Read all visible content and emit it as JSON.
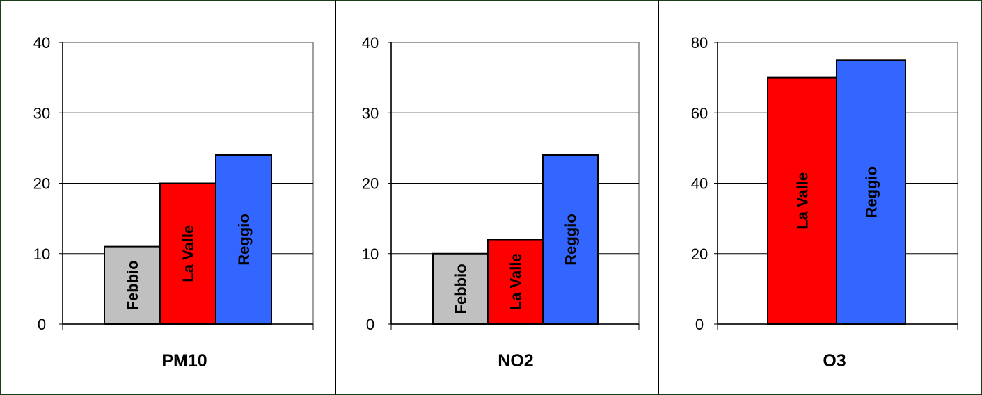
{
  "chart_data": [
    {
      "type": "bar",
      "title": "PM10",
      "categories": [
        "Febbio",
        "La Valle",
        "Reggio"
      ],
      "values": [
        11,
        20,
        24
      ],
      "colors": [
        "#c0c0c0",
        "#ff0000",
        "#3366ff"
      ],
      "ylim": [
        0,
        40
      ],
      "yticks": [
        "0",
        "10",
        "20",
        "30",
        "40"
      ],
      "grid": true,
      "legend": "none"
    },
    {
      "type": "bar",
      "title": "NO2",
      "categories": [
        "Febbio",
        "La Valle",
        "Reggio"
      ],
      "values": [
        10,
        12,
        24
      ],
      "colors": [
        "#c0c0c0",
        "#ff0000",
        "#3366ff"
      ],
      "ylim": [
        0,
        40
      ],
      "yticks": [
        "0",
        "10",
        "20",
        "30",
        "40"
      ],
      "grid": true,
      "legend": "none"
    },
    {
      "type": "bar",
      "title": "O3",
      "categories": [
        "La Valle",
        "Reggio"
      ],
      "values": [
        70,
        75
      ],
      "colors": [
        "#ff0000",
        "#3366ff"
      ],
      "ylim": [
        0,
        80
      ],
      "yticks": [
        "0",
        "20",
        "40",
        "60",
        "80"
      ],
      "grid": true,
      "legend": "none"
    }
  ]
}
